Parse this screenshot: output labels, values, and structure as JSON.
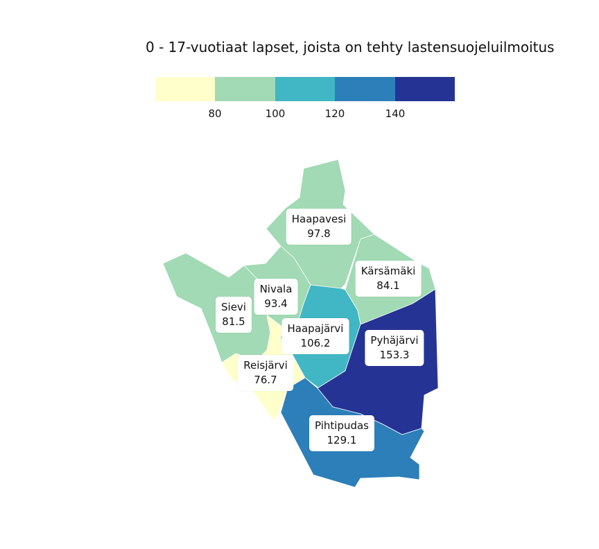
{
  "title": "0 - 17-vuotiaat lapset, joista on tehty lastensuojeluilmoitus",
  "legend": {
    "colors": [
      "#ffffcc",
      "#a1dab4",
      "#41b6c4",
      "#2c7fb8",
      "#253494"
    ],
    "ticks": [
      "80",
      "100",
      "120",
      "140"
    ]
  },
  "municipalities": [
    {
      "id": "haapavesi",
      "name": "Haapavesi",
      "value": "97.8",
      "color": "#a1dab4"
    },
    {
      "id": "karsamaki",
      "name": "Kärsämäki",
      "value": "84.1",
      "color": "#a1dab4"
    },
    {
      "id": "nivala",
      "name": "Nivala",
      "value": "93.4",
      "color": "#a1dab4"
    },
    {
      "id": "sievi",
      "name": "Sievi",
      "value": "81.5",
      "color": "#a1dab4"
    },
    {
      "id": "haapajarvi",
      "name": "Haapajärvi",
      "value": "106.2",
      "color": "#41b6c4"
    },
    {
      "id": "pyhajarvi",
      "name": "Pyhäjärvi",
      "value": "153.3",
      "color": "#253494"
    },
    {
      "id": "reisjarvi",
      "name": "Reisjärvi",
      "value": "76.7",
      "color": "#ffffcc"
    },
    {
      "id": "pihtipudas",
      "name": "Pihtipudas",
      "value": "129.1",
      "color": "#2c7fb8"
    }
  ]
}
